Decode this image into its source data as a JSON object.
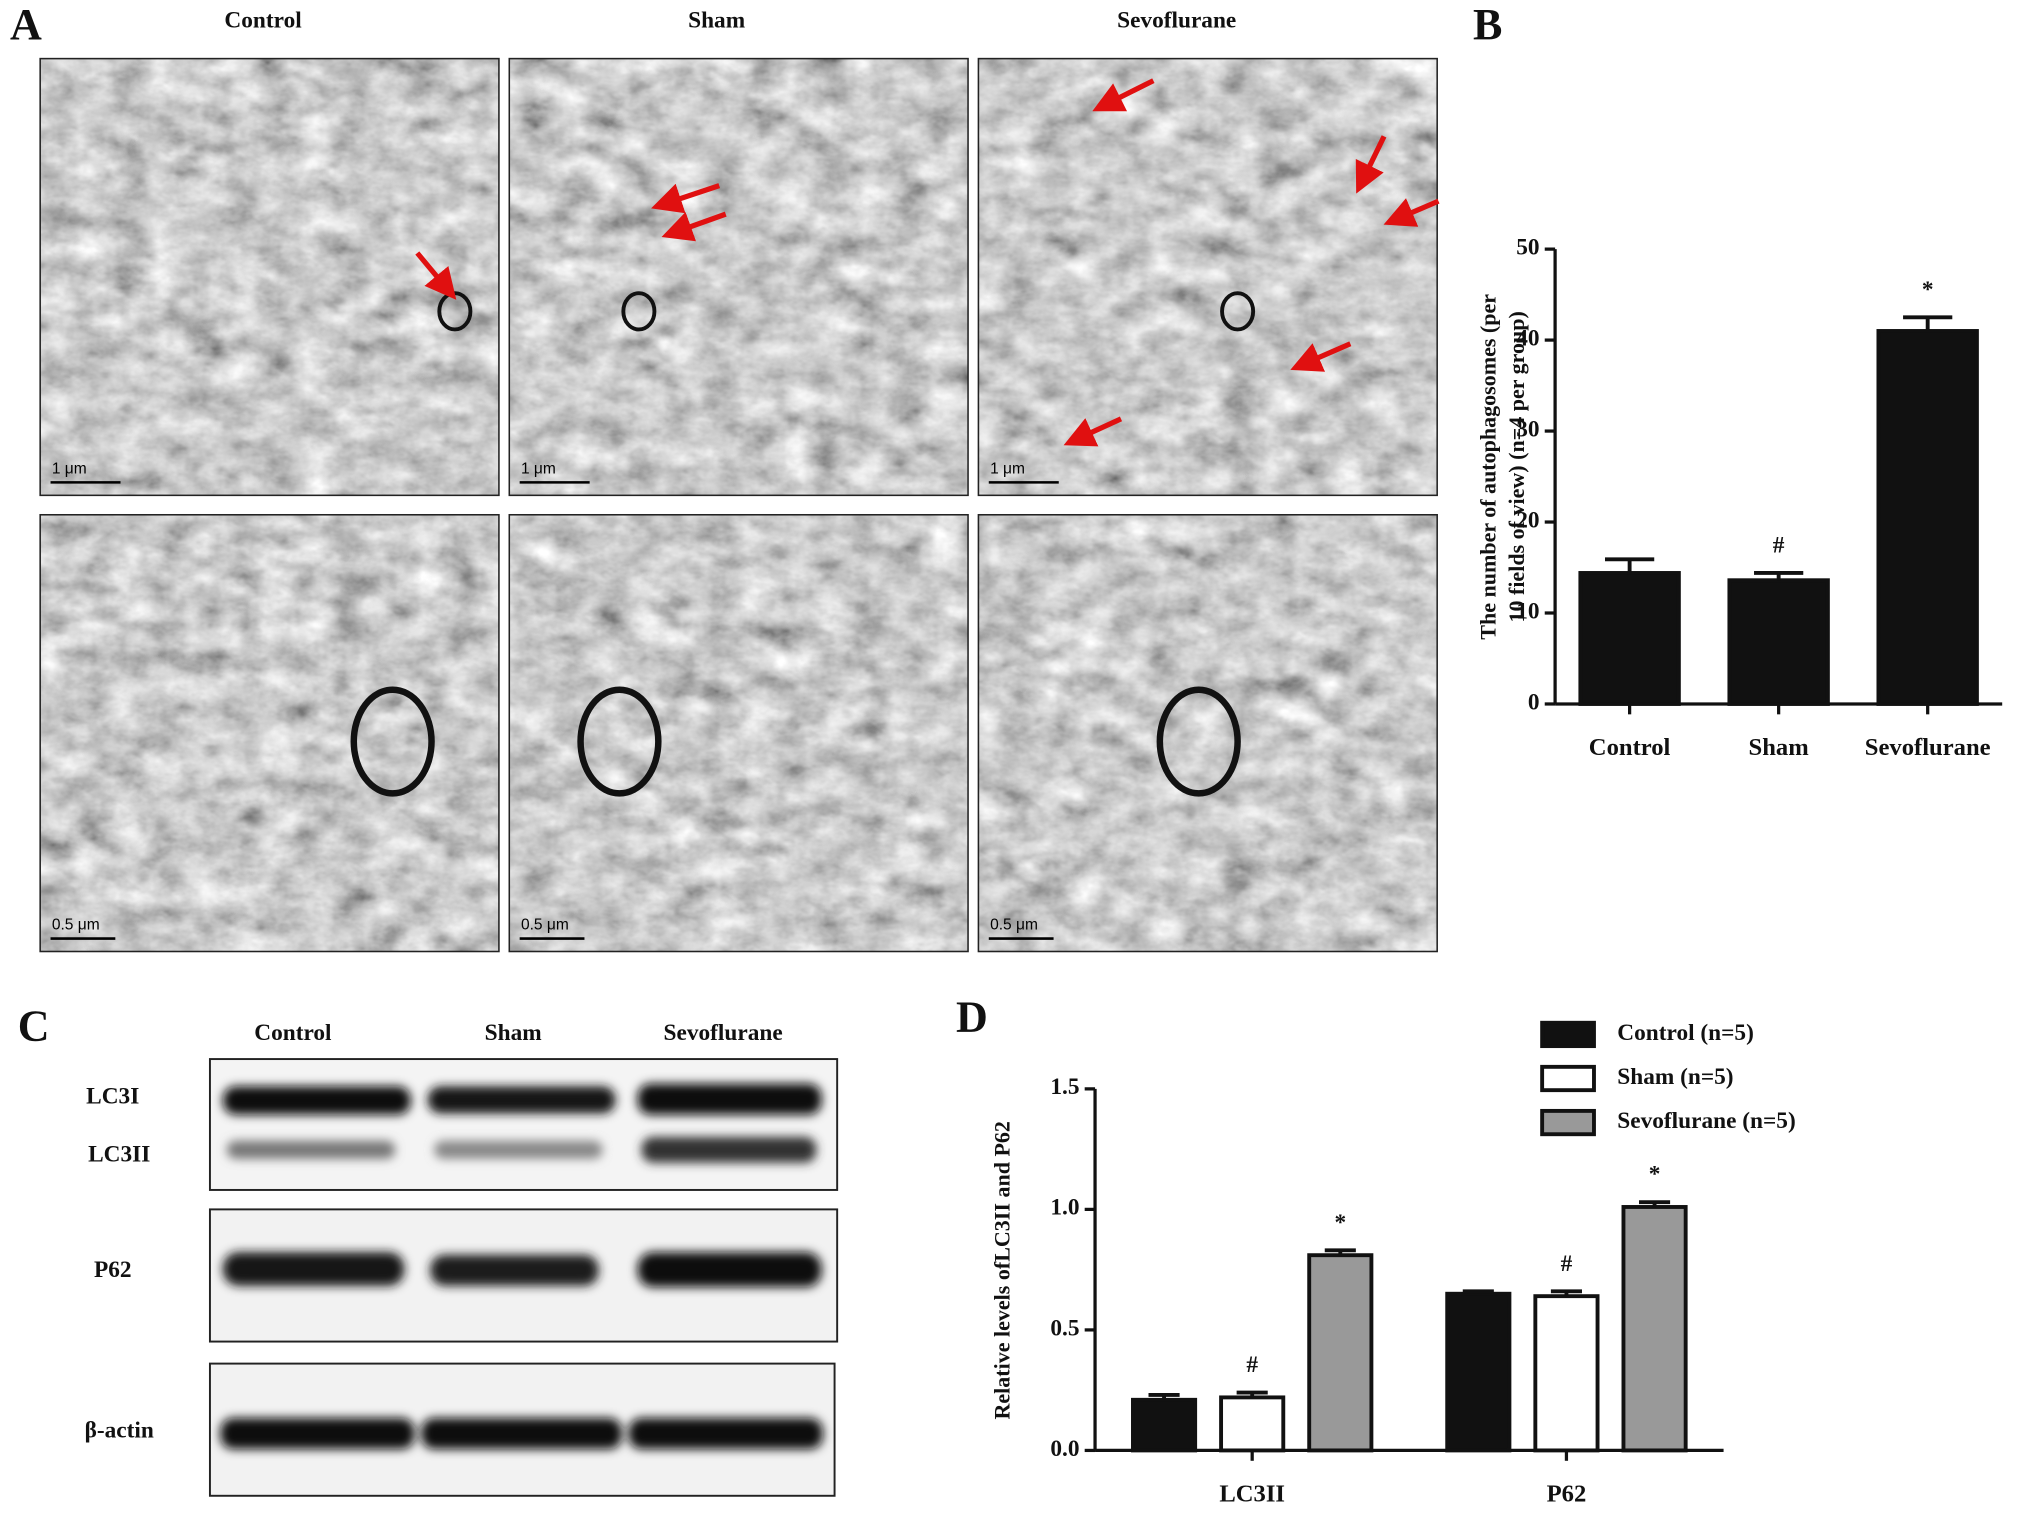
{
  "panels": {
    "a": "A",
    "b": "B",
    "c": "C",
    "d": "D"
  },
  "panel_a": {
    "columns": [
      "Control",
      "Sham",
      "Sevoflurane"
    ],
    "scale_bars": [
      "1 μm",
      "1 μm",
      "1 μm",
      "0.5 μm",
      "0.5 μm",
      "0.5 μm"
    ]
  },
  "panel_c": {
    "columns": [
      "Control",
      "Sham",
      "Sevoflurane"
    ],
    "rows": [
      "LC3I",
      "LC3II",
      "P62",
      "β-actin"
    ]
  },
  "chart_data": [
    {
      "type": "bar",
      "y_label": [
        "The number of autophagosomes (per",
        "10 fields of view) (n=4 per group)"
      ],
      "categories": [
        "Control",
        "Sham",
        "Sevoflurane"
      ],
      "values": [
        14.4,
        13.6,
        41.0
      ],
      "errors": [
        1.5,
        0.8,
        1.5
      ],
      "annotations": [
        null,
        "#",
        "*"
      ],
      "color": "#111111",
      "ylim": [
        0,
        50
      ],
      "yticks": [
        0,
        10,
        20,
        30,
        40,
        50
      ]
    },
    {
      "type": "bar",
      "y_label": [
        "Relative levels ofLC3II and P62"
      ],
      "categories": [
        "LC3II",
        "P62"
      ],
      "series": [
        {
          "name": "Control (n=5)",
          "color": "#111111",
          "values": [
            0.21,
            0.65
          ],
          "errors": [
            0.02,
            0.01
          ],
          "annotations": [
            null,
            null
          ]
        },
        {
          "name": "Sham  (n=5)",
          "color": "#ffffff",
          "values": [
            0.22,
            0.64
          ],
          "errors": [
            0.02,
            0.02
          ],
          "annotations": [
            "#",
            "#"
          ]
        },
        {
          "name": "Sevoflurane (n=5)",
          "color": "#999999",
          "values": [
            0.81,
            1.01
          ],
          "errors": [
            0.02,
            0.02
          ],
          "annotations": [
            "*",
            "*"
          ]
        }
      ],
      "ylim": [
        0,
        1.5
      ],
      "yticks": [
        {
          "value": 0,
          "label": "0.0"
        },
        0.5,
        {
          "value": 1,
          "label": "1.0"
        },
        1.5
      ]
    }
  ]
}
